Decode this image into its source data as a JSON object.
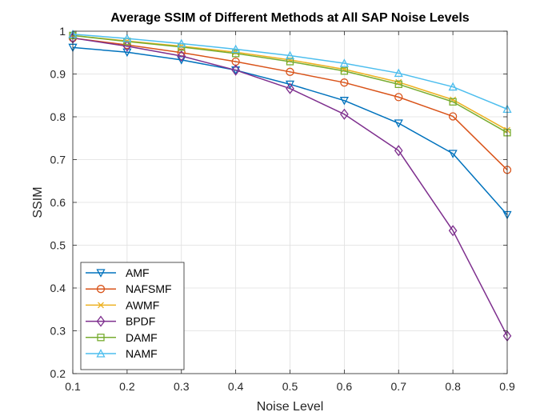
{
  "chart_data": {
    "type": "line",
    "title": "Average SSIM of Different Methods at All SAP Noise Levels",
    "xlabel": "Noise Level",
    "ylabel": "SSIM",
    "x": [
      0.1,
      0.2,
      0.3,
      0.4,
      0.5,
      0.6,
      0.7,
      0.8,
      0.9
    ],
    "x_tick_labels": [
      "0.1",
      "0.2",
      "0.3",
      "0.4",
      "0.5",
      "0.6",
      "0.7",
      "0.8",
      "0.9"
    ],
    "xlim": [
      0.1,
      0.9
    ],
    "ylim": [
      0.2,
      1.0
    ],
    "y_ticks": [
      0.2,
      0.3,
      0.4,
      0.5,
      0.6,
      0.7,
      0.8,
      0.9,
      1.0
    ],
    "y_tick_labels": [
      "0.2",
      "0.3",
      "0.4",
      "0.5",
      "0.6",
      "0.7",
      "0.8",
      "0.9",
      "1"
    ],
    "grid": true,
    "legend_position": "bottom-left",
    "series": [
      {
        "name": "AMF",
        "color": "#0072BD",
        "marker": "triangle-down",
        "values": [
          0.962,
          0.951,
          0.933,
          0.909,
          0.876,
          0.838,
          0.785,
          0.714,
          0.571
        ]
      },
      {
        "name": "NAFSMF",
        "color": "#D95319",
        "marker": "circle",
        "values": [
          0.984,
          0.968,
          0.95,
          0.929,
          0.905,
          0.88,
          0.846,
          0.801,
          0.676
        ]
      },
      {
        "name": "AWMF",
        "color": "#EDB120",
        "marker": "x",
        "values": [
          0.99,
          0.977,
          0.965,
          0.951,
          0.933,
          0.911,
          0.881,
          0.84,
          0.769
        ]
      },
      {
        "name": "BPDF",
        "color": "#7E2F8E",
        "marker": "diamond",
        "values": [
          0.984,
          0.965,
          0.942,
          0.909,
          0.866,
          0.806,
          0.721,
          0.534,
          0.288
        ]
      },
      {
        "name": "DAMF",
        "color": "#77AC30",
        "marker": "square",
        "values": [
          0.99,
          0.976,
          0.963,
          0.948,
          0.929,
          0.907,
          0.876,
          0.835,
          0.763
        ]
      },
      {
        "name": "NAMF",
        "color": "#4DBEEE",
        "marker": "triangle-up",
        "values": [
          0.993,
          0.983,
          0.971,
          0.958,
          0.943,
          0.925,
          0.902,
          0.87,
          0.818
        ]
      }
    ]
  }
}
